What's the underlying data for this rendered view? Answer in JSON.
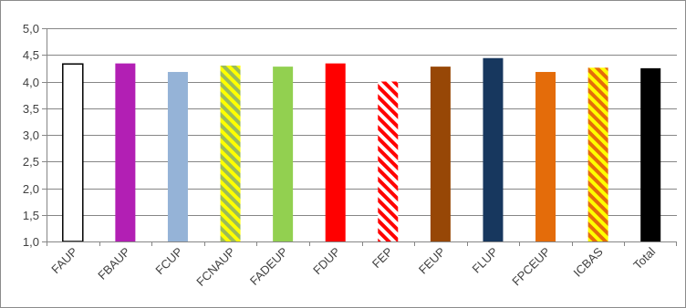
{
  "chart_data": {
    "type": "bar",
    "title": "",
    "xlabel": "",
    "ylabel": "",
    "ylim": [
      1.0,
      5.0
    ],
    "yticks": [
      "1,0",
      "1,5",
      "2,0",
      "2,5",
      "3,0",
      "3,5",
      "4,0",
      "4,5",
      "5,0"
    ],
    "grid": true,
    "legend": "none",
    "categories": [
      "FAUP",
      "FBAUP",
      "FCUP",
      "FCNAUP",
      "FADEUP",
      "FDUP",
      "FEP",
      "FEUP",
      "FLUP",
      "FPCEUP",
      "ICBAS",
      "Total"
    ],
    "values": [
      4.33,
      4.34,
      4.18,
      4.3,
      4.28,
      4.34,
      4.0,
      4.28,
      4.44,
      4.18,
      4.26,
      4.25
    ],
    "bar_styles": [
      {
        "fill": "#ffffff",
        "stroke": "#000000",
        "pattern": "none"
      },
      {
        "fill": "#b21fb4",
        "pattern": "none"
      },
      {
        "fill": "#95b3d7",
        "pattern": "none"
      },
      {
        "fill": "#ffff00",
        "pattern": "stripes",
        "stripe_color": "#9bbb59"
      },
      {
        "fill": "#92d050",
        "pattern": "none"
      },
      {
        "fill": "#ff0000",
        "pattern": "none"
      },
      {
        "fill": "#ffffff",
        "pattern": "stripes",
        "stripe_color": "#ff0000"
      },
      {
        "fill": "#974706",
        "pattern": "none"
      },
      {
        "fill": "#17375e",
        "pattern": "none"
      },
      {
        "fill": "#e46c0a",
        "pattern": "none"
      },
      {
        "fill": "#ffff00",
        "pattern": "stripes",
        "stripe_color": "#e46c0a"
      },
      {
        "fill": "#000000",
        "pattern": "none"
      }
    ]
  }
}
